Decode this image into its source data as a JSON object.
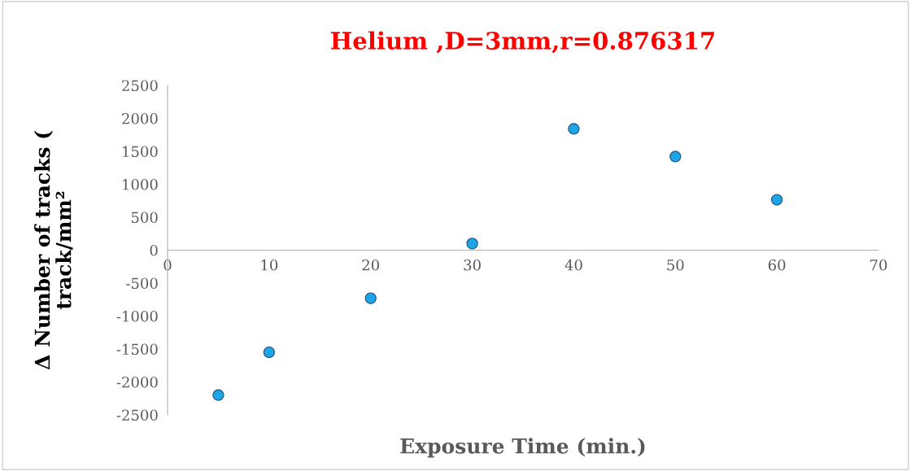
{
  "chart_data": {
    "type": "scatter",
    "title": "Helium ,D=3mm,r=0.876317",
    "xlabel": "Exposure Time (min.)",
    "ylabel": "Δ Number of tracks (\ntrack/mm²",
    "x": [
      5,
      10,
      20,
      30,
      40,
      50,
      60
    ],
    "series": [
      {
        "color": "#1ea5e8",
        "values": [
          -2200,
          -1550,
          -730,
          100,
          1840,
          1420,
          765
        ]
      }
    ],
    "xlim": [
      0,
      70
    ],
    "xticks": [
      0,
      10,
      20,
      30,
      40,
      50,
      60,
      70
    ],
    "ylim": [
      -2500,
      2500
    ],
    "yticks": [
      -2500,
      -2000,
      -1500,
      -1000,
      -500,
      0,
      500,
      1000,
      1500,
      2000,
      2500
    ],
    "marker": "circle",
    "grid": false,
    "legend": false
  }
}
